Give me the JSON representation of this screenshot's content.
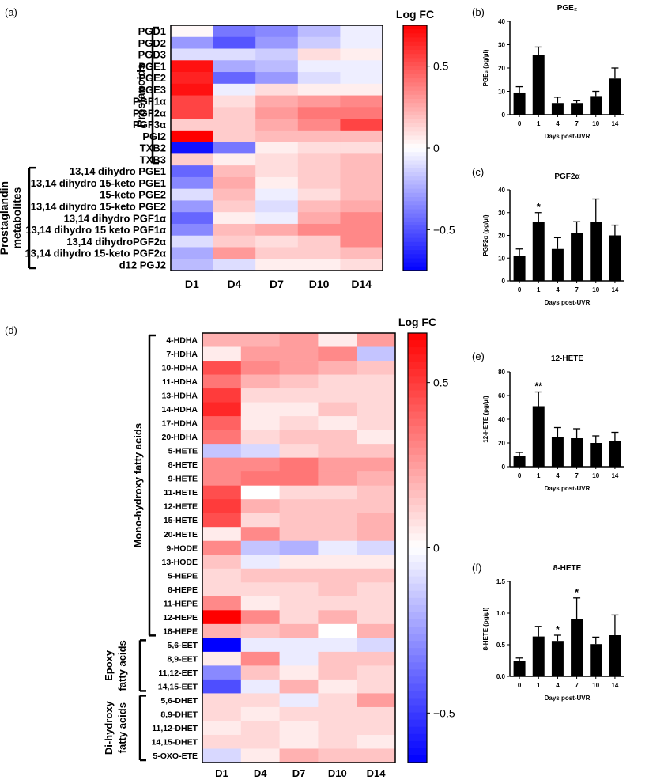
{
  "panels": {
    "a": "(a)",
    "b": "(b)",
    "c": "(c)",
    "d": "(d)",
    "e": "(e)",
    "f": "(f)"
  },
  "colors": {
    "neg": "#0000ff",
    "mid": "#ffffff",
    "pos": "#ff0000",
    "bar": "#000000"
  },
  "chart_data": [
    {
      "id": "heatmap_a",
      "type": "heatmap",
      "columns": [
        "D1",
        "D4",
        "D7",
        "D10",
        "D14"
      ],
      "rows": [
        "PGD1",
        "PGD2",
        "PGD3",
        "PGE1",
        "PGE2",
        "PGE3",
        "PGF1α",
        "PGF2α",
        "PGF3α",
        "PGI2",
        "TXB2",
        "TXB3",
        "13,14 dihydro PGE1",
        "13,14 dihydro 15-keto PGE1",
        "15-keto PGE2",
        "13,14 dihydro 15-keto PGE2",
        "13,14 dihydro PGF1α",
        "13,14 dihydro 15 keto PGF1α",
        "13,14 dihydroPGF2α",
        "13,14 dihydro 15-keto PGF2α",
        "d12 PGJ2"
      ],
      "values": [
        [
          0.02,
          -0.4,
          -0.35,
          -0.2,
          -0.05
        ],
        [
          -0.3,
          -0.5,
          -0.3,
          -0.15,
          -0.05
        ],
        [
          -0.1,
          -0.1,
          -0.15,
          0.1,
          0.05
        ],
        [
          0.7,
          -0.25,
          -0.2,
          -0.05,
          -0.05
        ],
        [
          0.65,
          -0.45,
          -0.3,
          -0.1,
          -0.05
        ],
        [
          0.7,
          -0.05,
          0.1,
          0.05,
          0.05
        ],
        [
          0.55,
          0.1,
          0.25,
          0.3,
          0.35
        ],
        [
          0.55,
          0.15,
          0.3,
          0.4,
          0.4
        ],
        [
          0.15,
          0.15,
          0.25,
          0.35,
          0.55
        ],
        [
          0.75,
          0.15,
          0.2,
          0.2,
          0.2
        ],
        [
          -0.7,
          -0.4,
          0.05,
          0.1,
          0.1
        ],
        [
          0.15,
          0.05,
          0.1,
          0.15,
          0.2
        ],
        [
          -0.45,
          0.2,
          0.1,
          0.15,
          0.2
        ],
        [
          -0.35,
          0.25,
          0.05,
          0.15,
          0.2
        ],
        [
          -0.1,
          0.2,
          -0.05,
          0.1,
          0.2
        ],
        [
          -0.3,
          0.15,
          -0.1,
          0.2,
          0.25
        ],
        [
          -0.45,
          0.05,
          -0.05,
          0.25,
          0.35
        ],
        [
          -0.35,
          0.2,
          0.25,
          0.35,
          0.35
        ],
        [
          -0.1,
          0.15,
          0.1,
          0.15,
          0.35
        ],
        [
          -0.25,
          0.3,
          0.15,
          0.15,
          0.2
        ],
        [
          -0.2,
          -0.1,
          0.05,
          0.05,
          0.1
        ]
      ],
      "groups": [
        {
          "label": "Prostanoids",
          "from": 0,
          "to": 11
        },
        {
          "label": "Prostaglandin metabolites",
          "from": 12,
          "to": 20
        }
      ],
      "colorbar": {
        "title": "Log FC",
        "ticks": [
          "0.5",
          "0",
          "−0.5"
        ],
        "tick_values": [
          0.5,
          0,
          -0.5
        ],
        "range": [
          -0.75,
          0.75
        ]
      }
    },
    {
      "id": "heatmap_d",
      "type": "heatmap",
      "columns": [
        "D1",
        "D4",
        "D7",
        "D10",
        "D14"
      ],
      "rows": [
        "4-HDHA",
        "7-HDHA",
        "10-HDHA",
        "11-HDHA",
        "13-HDHA",
        "14-HDHA",
        "17-HDHA",
        "20-HDHA",
        "5-HETE",
        "8-HETE",
        "9-HETE",
        "11-HETE",
        "12-HETE",
        "15-HETE",
        "20-HETE",
        "9-HODE",
        "13-HODE",
        "5-HEPE",
        "8-HEPE",
        "11-HEPE",
        "12-HEPE",
        "18-HEPE",
        "5,6-EET",
        "8,9-EET",
        "11,12-EET",
        "14,15-EET",
        "5,6-DHET",
        "8,9-DHET",
        "11,12-DHET",
        "14,15-DHET",
        "5-OXO-ETE"
      ],
      "values": [
        [
          0.2,
          0.2,
          0.25,
          0.05,
          0.25
        ],
        [
          0.05,
          0.25,
          0.25,
          0.3,
          -0.15
        ],
        [
          0.45,
          0.3,
          0.25,
          0.2,
          0.15
        ],
        [
          0.35,
          0.2,
          0.15,
          0.1,
          0.1
        ],
        [
          0.5,
          0.1,
          0.1,
          0.1,
          0.1
        ],
        [
          0.55,
          0.05,
          0.05,
          0.15,
          0.1
        ],
        [
          0.4,
          0.05,
          0.1,
          0.05,
          0.1
        ],
        [
          0.35,
          0.1,
          0.15,
          0.15,
          0.05
        ],
        [
          -0.15,
          -0.1,
          0.1,
          0.15,
          0.15
        ],
        [
          0.3,
          0.3,
          0.35,
          0.25,
          0.25
        ],
        [
          0.3,
          0.35,
          0.35,
          0.25,
          0.2
        ],
        [
          0.45,
          0.0,
          0.1,
          0.1,
          0.15
        ],
        [
          0.5,
          0.2,
          0.15,
          0.15,
          0.15
        ],
        [
          0.45,
          0.1,
          0.15,
          0.15,
          0.2
        ],
        [
          0.05,
          0.3,
          0.15,
          0.15,
          0.2
        ],
        [
          0.3,
          -0.15,
          -0.2,
          -0.05,
          -0.1
        ],
        [
          0.15,
          -0.05,
          0.05,
          0.05,
          0.05
        ],
        [
          0.1,
          0.15,
          0.15,
          0.15,
          0.15
        ],
        [
          0.1,
          0.1,
          0.1,
          0.15,
          0.1
        ],
        [
          0.3,
          0.05,
          0.1,
          0.1,
          0.1
        ],
        [
          0.65,
          0.3,
          0.1,
          0.2,
          0.1
        ],
        [
          0.2,
          0.15,
          0.2,
          0.0,
          0.2
        ],
        [
          -0.65,
          -0.05,
          -0.05,
          -0.05,
          -0.1
        ],
        [
          0.05,
          0.3,
          -0.05,
          0.15,
          0.15
        ],
        [
          -0.3,
          0.15,
          0.05,
          0.15,
          0.1
        ],
        [
          -0.45,
          -0.05,
          0.2,
          0.05,
          0.1
        ],
        [
          0.1,
          0.1,
          -0.05,
          0.1,
          0.25
        ],
        [
          0.1,
          0.05,
          0.1,
          0.1,
          0.1
        ],
        [
          0.05,
          0.1,
          0.05,
          0.1,
          0.1
        ],
        [
          0.1,
          0.1,
          0.05,
          0.1,
          0.05
        ],
        [
          -0.1,
          0.05,
          0.2,
          0.15,
          0.15
        ]
      ],
      "groups": [
        {
          "label": "Mono-hydroxy fatty acids",
          "from": 0,
          "to": 21
        },
        {
          "label": "Epoxy fatty acids",
          "from": 22,
          "to": 25
        },
        {
          "label": "Di-hydroxy fatty acids",
          "from": 26,
          "to": 30
        }
      ],
      "colorbar": {
        "title": "Log FC",
        "ticks": [
          "0.5",
          "0",
          "−0.5"
        ],
        "tick_values": [
          0.5,
          0,
          -0.5
        ],
        "range": [
          -0.65,
          0.65
        ]
      }
    },
    {
      "id": "bar_b",
      "type": "bar",
      "title": "PGE₂",
      "categories": [
        "0",
        "1",
        "4",
        "7",
        "10",
        "14"
      ],
      "values": [
        9.5,
        25.5,
        5,
        5,
        8,
        15.5
      ],
      "errors": [
        2.5,
        3.5,
        2.5,
        1,
        2,
        4.5
      ],
      "ylim": [
        0,
        40
      ],
      "yticks": [
        "0",
        "10",
        "20",
        "30",
        "40"
      ],
      "xlabel": "Days post-UVR",
      "ylabel": "PGE₂ (pg/µl)",
      "significance": [
        "",
        "",
        "",
        "",
        "",
        ""
      ]
    },
    {
      "id": "bar_c",
      "type": "bar",
      "title": "PGF2α",
      "categories": [
        "0",
        "1",
        "4",
        "7",
        "10",
        "14"
      ],
      "values": [
        11,
        26,
        14,
        21,
        26,
        20
      ],
      "errors": [
        3,
        4,
        5,
        5,
        10,
        4.5
      ],
      "ylim": [
        0,
        40
      ],
      "yticks": [
        "0",
        "10",
        "20",
        "30",
        "40"
      ],
      "xlabel": "Days post-UVR",
      "ylabel": "PGF2α (pg/µl)",
      "significance": [
        "",
        "*",
        "",
        "",
        "",
        ""
      ]
    },
    {
      "id": "bar_e",
      "type": "bar",
      "title": "12-HETE",
      "categories": [
        "0",
        "1",
        "4",
        "7",
        "10",
        "14"
      ],
      "values": [
        9,
        51,
        25,
        24,
        20,
        22
      ],
      "errors": [
        3,
        12,
        8,
        8,
        6,
        7
      ],
      "ylim": [
        0,
        80
      ],
      "yticks": [
        "0",
        "20",
        "40",
        "60",
        "80"
      ],
      "xlabel": "Days post-UVR",
      "ylabel": "12-HETE (pg/µl)",
      "significance": [
        "",
        "**",
        "",
        "",
        "",
        ""
      ]
    },
    {
      "id": "bar_f",
      "type": "bar",
      "title": "8-HETE",
      "categories": [
        "0",
        "1",
        "4",
        "7",
        "10",
        "14"
      ],
      "values": [
        0.25,
        0.63,
        0.56,
        0.91,
        0.51,
        0.65
      ],
      "errors": [
        0.04,
        0.16,
        0.09,
        0.33,
        0.11,
        0.32
      ],
      "ylim": [
        0,
        1.5
      ],
      "yticks": [
        "0.0",
        "0.5",
        "1.0",
        "1.5"
      ],
      "xlabel": "Days post-UVR",
      "ylabel": "8-HETE (pg/µl)",
      "significance": [
        "",
        "",
        "*",
        "*",
        "",
        ""
      ]
    }
  ]
}
